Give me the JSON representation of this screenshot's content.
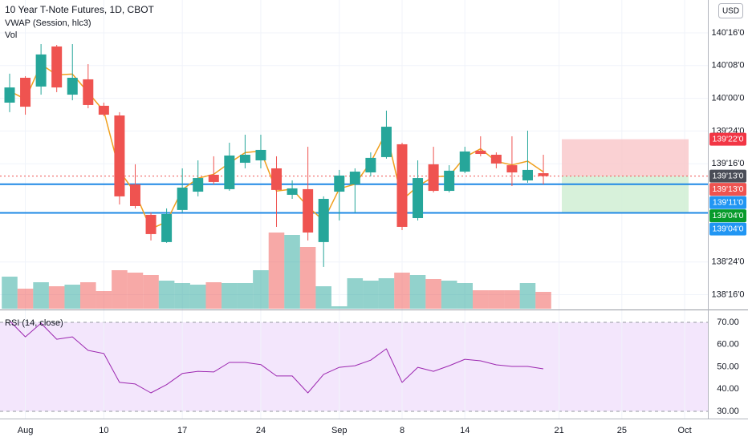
{
  "chart_data": {
    "type": "candlestick",
    "title": "10 Year T-Note Futures, 1D, CBOT",
    "currency": "USD",
    "up_color": "#26a69a",
    "down_color": "#ef5350",
    "categories": [
      null,
      "Aug",
      null,
      null,
      null,
      null,
      "10",
      null,
      null,
      null,
      null,
      "17",
      null,
      null,
      null,
      null,
      "24",
      null,
      null,
      null,
      null,
      "Sep",
      null,
      null,
      null,
      "8",
      null,
      null,
      null,
      "14",
      null,
      null,
      null,
      null,
      null,
      "21",
      null,
      null,
      null,
      "25",
      null,
      null,
      null,
      "Oct"
    ],
    "open": [
      139.967,
      140.157,
      140.09,
      140.396,
      140.028,
      140.145,
      139.943,
      139.869,
      139.342,
      139.11,
      138.902,
      139.147,
      139.287,
      139.416,
      139.306,
      139.508,
      139.526,
      139.465,
      139.263,
      139.306,
      138.902,
      139.287,
      139.342,
      139.434,
      139.551,
      139.649,
      139.085,
      139.496,
      139.293,
      139.44,
      139.6,
      139.569,
      139.489,
      139.373,
      139.428,
      null,
      null,
      null,
      null,
      null,
      null,
      null,
      null,
      null
    ],
    "high": [
      140.188,
      140.169,
      140.414,
      140.408,
      140.414,
      140.261,
      139.967,
      139.894,
      139.496,
      139.128,
      139.159,
      139.465,
      139.526,
      139.557,
      139.661,
      139.722,
      139.722,
      139.557,
      139.373,
      139.63,
      139.251,
      139.453,
      139.465,
      139.587,
      139.906,
      139.661,
      139.526,
      139.63,
      139.489,
      139.63,
      139.71,
      139.587,
      139.71,
      139.753,
      139.569,
      null,
      null,
      null,
      null,
      null,
      null,
      null,
      null,
      null
    ],
    "low": [
      139.894,
      139.875,
      140.028,
      140.047,
      139.985,
      139.924,
      139.863,
      139.189,
      139.159,
      138.914,
      138.896,
      139.128,
      139.251,
      139.342,
      139.294,
      139.465,
      139.465,
      139.018,
      139.232,
      138.914,
      138.712,
      139.067,
      139.128,
      139.404,
      139.539,
      138.993,
      139.067,
      139.281,
      139.281,
      139.428,
      139.557,
      139.465,
      139.33,
      139.355,
      139.342,
      null,
      null,
      null,
      null,
      null,
      null,
      null,
      null,
      null
    ],
    "close": [
      140.083,
      139.936,
      140.335,
      140.083,
      140.157,
      139.949,
      139.875,
      139.251,
      139.177,
      138.963,
      139.116,
      139.318,
      139.391,
      139.361,
      139.563,
      139.569,
      139.606,
      139.3,
      139.312,
      138.975,
      139.232,
      139.41,
      139.44,
      139.545,
      139.783,
      139.018,
      139.391,
      139.293,
      139.447,
      139.594,
      139.575,
      139.502,
      139.434,
      139.453,
      139.406,
      null,
      null,
      null,
      null,
      null,
      null,
      null,
      null,
      null
    ],
    "ylim": [
      138.393,
      140.751
    ],
    "yticks": [
      {
        "value": 140.5,
        "label": "140'16'0"
      },
      {
        "value": 140.25,
        "label": "140'08'0"
      },
      {
        "value": 140.0,
        "label": "140'00'0"
      },
      {
        "value": 139.75,
        "label": "139'24'0"
      },
      {
        "value": 139.5,
        "label": "139'16'0"
      },
      {
        "value": 138.75,
        "label": "138'24'0"
      },
      {
        "value": 138.5,
        "label": "138'16'0"
      }
    ],
    "grid": true,
    "vwap": {
      "name": "VWAP (Session, hlc3)",
      "color": "#f0a01e",
      "values": [
        140.055,
        139.993,
        140.259,
        140.179,
        140.185,
        140.045,
        139.902,
        139.445,
        139.277,
        139.002,
        139.057,
        139.304,
        139.389,
        139.42,
        139.506,
        139.585,
        139.598,
        139.292,
        139.306,
        139.173,
        139.065,
        139.31,
        139.344,
        139.512,
        139.743,
        139.224,
        139.328,
        139.401,
        139.406,
        139.551,
        139.614,
        139.518,
        139.491,
        139.52,
        139.438,
        null,
        null,
        null,
        null,
        null,
        null,
        null,
        null,
        null
      ]
    },
    "volume": {
      "name": "Vol",
      "ylim": [
        0,
        100
      ],
      "values": [
        40,
        25,
        33,
        28,
        30,
        33,
        22,
        48,
        45,
        42,
        35,
        32,
        30,
        33,
        32,
        32,
        48,
        95,
        92,
        77,
        28,
        3,
        38,
        35,
        38,
        45,
        42,
        37,
        35,
        32,
        23,
        23,
        23,
        32,
        21,
        null,
        null,
        null,
        null,
        null,
        null,
        null,
        null,
        null
      ]
    },
    "hlines": [
      {
        "value": 139.34375,
        "color": "#1e88e5"
      },
      {
        "value": 139.125,
        "color": "#1e88e5"
      }
    ],
    "last_price": {
      "value": 139.40625,
      "color": "#ef5350"
    },
    "position": {
      "entry": 139.40625,
      "stop": 139.6875,
      "target": 139.125,
      "stop_color": "#f9c5c8",
      "target_color": "#d3efd6"
    },
    "price_labels": [
      {
        "value": 139.6875,
        "label": "139'22'0",
        "color": "#f23645"
      },
      {
        "value": 139.40625,
        "label": "139'13'0",
        "color": "#4a4d57"
      },
      {
        "value": 139.40625,
        "label": "139'13'0",
        "color": "#ef5350"
      },
      {
        "value": 139.34375,
        "label": "139'11'0",
        "color": "#2196f3"
      },
      {
        "value": 139.125,
        "label": "139'04'0",
        "color": "#089b2b"
      },
      {
        "value": 139.125,
        "label": "139'04'0",
        "color": "#2196f3"
      }
    ],
    "rsi": {
      "name": "RSI (14, close)",
      "color": "#9c27b0",
      "band_color": "#f3e6fc",
      "ylim": [
        26.76,
        75.05
      ],
      "yticks": [
        {
          "value": 70,
          "label": "70.00"
        },
        {
          "value": 60,
          "label": "60.00"
        },
        {
          "value": 50,
          "label": "50.00"
        },
        {
          "value": 40,
          "label": "40.00"
        },
        {
          "value": 30,
          "label": "30.00"
        }
      ],
      "bands": [
        70,
        30
      ],
      "values": [
        70.7,
        63.5,
        69.6,
        62.4,
        63.5,
        57.4,
        56.0,
        43.0,
        42.3,
        38.3,
        42.0,
        47.0,
        48.0,
        47.7,
        52.0,
        52.0,
        51.0,
        45.9,
        45.9,
        38.3,
        46.6,
        49.8,
        50.5,
        53.0,
        58.1,
        43.0,
        49.8,
        48.0,
        50.5,
        53.4,
        52.7,
        50.9,
        50.2,
        50.2,
        49.1,
        null,
        null,
        null,
        null,
        null,
        null,
        null,
        null,
        null
      ]
    }
  }
}
